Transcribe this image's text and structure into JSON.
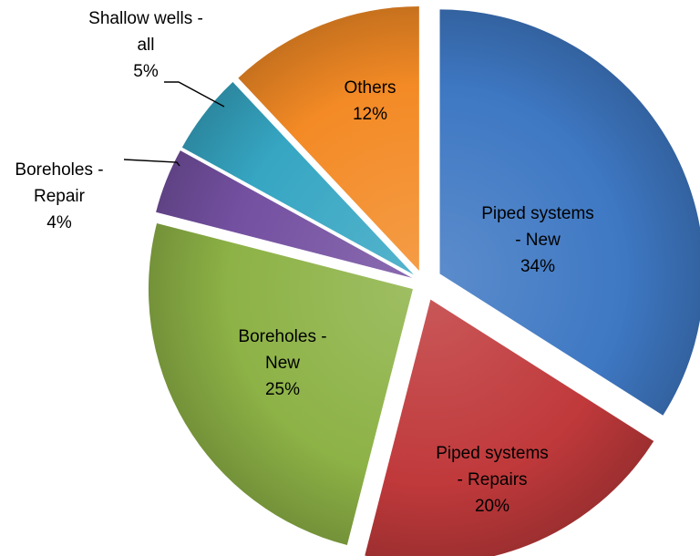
{
  "chart_data": {
    "type": "pie",
    "title": "",
    "legend": "none",
    "slices": [
      {
        "label_lines": [
          "Piped systems",
          "- New",
          "34%"
        ],
        "value": 34,
        "color": "#3e78c3",
        "label_color": "#000000"
      },
      {
        "label_lines": [
          "Piped systems",
          "- Repairs",
          "20%"
        ],
        "value": 20,
        "color": "#c0393b",
        "label_color": "#000000"
      },
      {
        "label_lines": [
          "Boreholes -",
          "New",
          "25%"
        ],
        "value": 25,
        "color": "#8db246",
        "label_color": "#000000"
      },
      {
        "label_lines": [
          "Boreholes -",
          "Repair",
          "4%"
        ],
        "value": 4,
        "color": "#7450a1",
        "label_color": "#000000"
      },
      {
        "label_lines": [
          "Shallow wells -",
          "all",
          "5%"
        ],
        "value": 5,
        "color": "#36a6c3",
        "label_color": "#000000"
      },
      {
        "label_lines": [
          "Others",
          "12%"
        ],
        "value": 12,
        "color": "#f38a25",
        "label_color": "#000000"
      }
    ]
  }
}
